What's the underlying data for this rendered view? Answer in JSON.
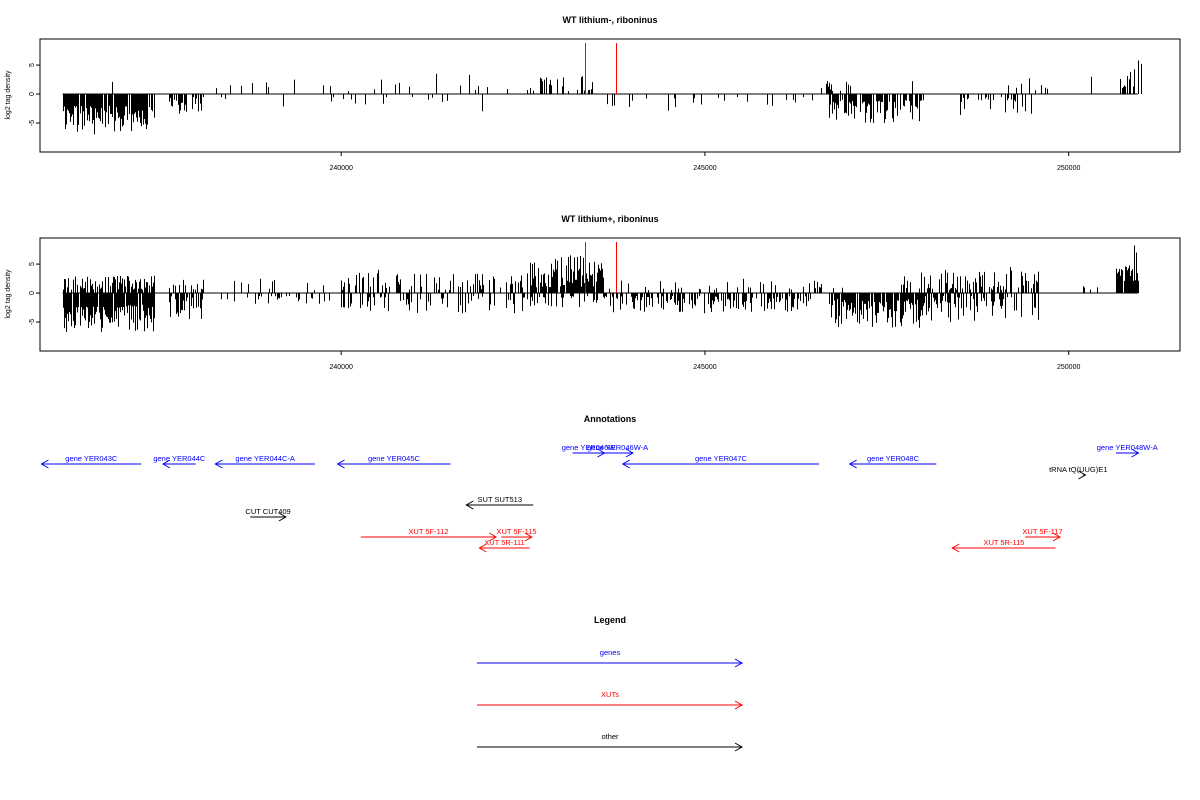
{
  "colors": {
    "genes": "#0000ff",
    "xuts": "#ff0000",
    "other": "#000000",
    "red_markers": "#ff0000"
  },
  "chart_data": [
    {
      "type": "bar",
      "title": "WT lithium-, riboninus",
      "xlabel": "",
      "ylabel": "log2 tag density",
      "xlim": [
        235860,
        251530
      ],
      "ylim": [
        -10,
        9.5
      ],
      "x_ticks": [
        240000,
        245000,
        250000
      ],
      "y_ticks": [
        5,
        0,
        -5
      ],
      "grid": false,
      "tracks": [
        {
          "strand": "minus",
          "from": 236170,
          "to": 237430,
          "density": 0.9,
          "min": 2,
          "max": 7,
          "seed": 11
        },
        {
          "strand": "minus",
          "from": 237640,
          "to": 238100,
          "density": 0.55,
          "min": 0.5,
          "max": 3.5,
          "seed": 12
        },
        {
          "strand": "minus",
          "from": 238300,
          "to": 238450,
          "density": 0.2,
          "min": 0.5,
          "max": 2,
          "seed": 13
        },
        {
          "strand": "minus",
          "from": 239000,
          "to": 239950,
          "density": 0.05,
          "min": 0.5,
          "max": 2.5,
          "seed": 14
        },
        {
          "strand": "minus",
          "from": 240000,
          "to": 242000,
          "density": 0.12,
          "min": 0.5,
          "max": 3,
          "seed": 15
        },
        {
          "strand": "minus",
          "from": 243600,
          "to": 246500,
          "density": 0.12,
          "min": 0.5,
          "max": 3,
          "seed": 16
        },
        {
          "strand": "minus",
          "from": 246700,
          "to": 248000,
          "density": 0.7,
          "min": 1,
          "max": 5,
          "seed": 17
        },
        {
          "strand": "minus",
          "from": 248500,
          "to": 249500,
          "density": 0.35,
          "min": 0.5,
          "max": 4,
          "seed": 18
        },
        {
          "strand": "plus",
          "from": 238000,
          "to": 242600,
          "density": 0.05,
          "min": 0.5,
          "max": 2.5,
          "seed": 21
        },
        {
          "strand": "plus",
          "from": 242600,
          "to": 243500,
          "density": 0.3,
          "min": 0.5,
          "max": 3.5,
          "seed": 22
        },
        {
          "strand": "plus",
          "from": 246600,
          "to": 247000,
          "density": 0.3,
          "min": 0.5,
          "max": 2.5,
          "seed": 23
        },
        {
          "strand": "plus",
          "from": 249000,
          "to": 249800,
          "density": 0.07,
          "min": 0.5,
          "max": 2,
          "seed": 24
        },
        {
          "strand": "plus",
          "from": 250700,
          "to": 250900,
          "density": 0.7,
          "min": 1,
          "max": 4.5,
          "seed": 25
        }
      ],
      "spikes": [
        {
          "x": 236850,
          "y": 2.1
        },
        {
          "x": 239000,
          "y": 1.2
        },
        {
          "x": 239750,
          "y": 1.5
        },
        {
          "x": 240550,
          "y": 2.5
        },
        {
          "x": 241300,
          "y": 3.5
        },
        {
          "x": 241750,
          "y": 3.3
        },
        {
          "x": 247850,
          "y": 2.2
        },
        {
          "x": 249450,
          "y": 2.7
        },
        {
          "x": 250300,
          "y": 3.0
        },
        {
          "x": 250950,
          "y": 5.8
        },
        {
          "x": 251000,
          "y": 5.2
        }
      ],
      "red_markers": [
        243350,
        243780
      ]
    },
    {
      "type": "bar",
      "title": "WT lithium+, riboninus",
      "xlabel": "",
      "ylabel": "log2 tag density",
      "xlim": [
        235860,
        251530
      ],
      "ylim": [
        -10,
        9.5
      ],
      "x_ticks": [
        240000,
        245000,
        250000
      ],
      "y_ticks": [
        5,
        0,
        -5
      ],
      "grid": false,
      "tracks": [
        {
          "strand": "plus",
          "from": 236170,
          "to": 237430,
          "density": 0.6,
          "min": 0.5,
          "max": 3,
          "seed": 31
        },
        {
          "strand": "minus",
          "from": 236170,
          "to": 237430,
          "density": 0.9,
          "min": 2,
          "max": 7,
          "seed": 32
        },
        {
          "strand": "plus",
          "from": 237640,
          "to": 238100,
          "density": 0.3,
          "min": 0.5,
          "max": 2.5,
          "seed": 33
        },
        {
          "strand": "minus",
          "from": 237640,
          "to": 238100,
          "density": 0.6,
          "min": 0.5,
          "max": 4.5,
          "seed": 34
        },
        {
          "strand": "plus",
          "from": 238300,
          "to": 240000,
          "density": 0.15,
          "min": 0.5,
          "max": 2.5,
          "seed": 35
        },
        {
          "strand": "minus",
          "from": 238300,
          "to": 240000,
          "density": 0.15,
          "min": 0.5,
          "max": 2.5,
          "seed": 36
        },
        {
          "strand": "plus",
          "from": 240000,
          "to": 242600,
          "density": 0.3,
          "min": 0.5,
          "max": 3.5,
          "seed": 37
        },
        {
          "strand": "minus",
          "from": 240000,
          "to": 242600,
          "density": 0.3,
          "min": 0.5,
          "max": 3.5,
          "seed": 38
        },
        {
          "strand": "plus",
          "from": 242600,
          "to": 243600,
          "density": 0.9,
          "min": 1,
          "max": 6.5,
          "seed": 39
        },
        {
          "strand": "minus",
          "from": 242600,
          "to": 243600,
          "density": 0.3,
          "min": 0.5,
          "max": 2.5,
          "seed": 40
        },
        {
          "strand": "plus",
          "from": 243600,
          "to": 246500,
          "density": 0.15,
          "min": 0.5,
          "max": 2.5,
          "seed": 41
        },
        {
          "strand": "minus",
          "from": 243600,
          "to": 246500,
          "density": 0.6,
          "min": 0.5,
          "max": 3.5,
          "seed": 42
        },
        {
          "strand": "plus",
          "from": 246500,
          "to": 247000,
          "density": 0.2,
          "min": 0.5,
          "max": 2.5,
          "seed": 43
        },
        {
          "strand": "minus",
          "from": 246700,
          "to": 248000,
          "density": 0.9,
          "min": 1,
          "max": 6,
          "seed": 44
        },
        {
          "strand": "plus",
          "from": 247700,
          "to": 249600,
          "density": 0.45,
          "min": 0.5,
          "max": 4,
          "seed": 45
        },
        {
          "strand": "minus",
          "from": 248000,
          "to": 249600,
          "density": 0.6,
          "min": 0.5,
          "max": 5,
          "seed": 46
        },
        {
          "strand": "plus",
          "from": 250200,
          "to": 250400,
          "density": 0.3,
          "min": 0.5,
          "max": 2,
          "seed": 47
        },
        {
          "strand": "plus",
          "from": 250650,
          "to": 250950,
          "density": 0.95,
          "min": 2,
          "max": 6,
          "seed": 48
        }
      ],
      "spikes": [
        {
          "x": 240500,
          "y": 4.0
        },
        {
          "x": 241000,
          "y": 3.3
        },
        {
          "x": 249200,
          "y": 4.5
        },
        {
          "x": 250900,
          "y": 8.2
        },
        {
          "x": 250920,
          "y": 7.0
        }
      ],
      "red_markers": [
        243350,
        243780
      ]
    }
  ],
  "annotations": {
    "title": "Annotations",
    "features": [
      {
        "label": "gene YER043C",
        "kind": "genes",
        "from": 237250,
        "to": 235880,
        "row": 1
      },
      {
        "label": "gene YER044C",
        "kind": "genes",
        "from": 238000,
        "to": 237550,
        "row": 1
      },
      {
        "label": "gene YER044C-A",
        "kind": "genes",
        "from": 239640,
        "to": 238270,
        "row": 1
      },
      {
        "label": "gene YER045C",
        "kind": "genes",
        "from": 241500,
        "to": 239950,
        "row": 1
      },
      {
        "label": "gene YER046W",
        "kind": "genes",
        "from": 243180,
        "to": 243620,
        "row": 0
      },
      {
        "label": "gene YER046W-A",
        "kind": "genes",
        "from": 243590,
        "to": 244010,
        "row": 0
      },
      {
        "label": "gene YER047C",
        "kind": "genes",
        "from": 246570,
        "to": 243870,
        "row": 1
      },
      {
        "label": "gene YER048C",
        "kind": "genes",
        "from": 248180,
        "to": 246990,
        "row": 1
      },
      {
        "label": "gene YER048W-A",
        "kind": "genes",
        "from": 250650,
        "to": 250960,
        "row": 0
      },
      {
        "label": "tRNA tQ(UUG)E1",
        "kind": "other",
        "from": 250200,
        "to": 250230,
        "row": 2
      },
      {
        "label": "CUT CUT409",
        "kind": "other",
        "from": 238750,
        "to": 239240,
        "row": 4
      },
      {
        "label": "SUT SUT513",
        "kind": "other",
        "from": 242640,
        "to": 241720,
        "row": 3
      },
      {
        "label": "XUT 5F-112",
        "kind": "xuts",
        "from": 240270,
        "to": 242130,
        "row": 5
      },
      {
        "label": "XUT 5F-115",
        "kind": "xuts",
        "from": 242200,
        "to": 242620,
        "row": 5
      },
      {
        "label": "XUT 5R-111",
        "kind": "xuts",
        "from": 242590,
        "to": 241900,
        "row": 6
      },
      {
        "label": "XUT 5F-117",
        "kind": "xuts",
        "from": 249400,
        "to": 249880,
        "row": 5
      },
      {
        "label": "XUT 5R-115",
        "kind": "xuts",
        "from": 249820,
        "to": 248400,
        "row": 6
      }
    ]
  },
  "legend": {
    "title": "Legend",
    "items": [
      {
        "label": "genes",
        "kind": "genes"
      },
      {
        "label": "XUTs",
        "kind": "xuts"
      },
      {
        "label": "other",
        "kind": "other"
      }
    ]
  }
}
